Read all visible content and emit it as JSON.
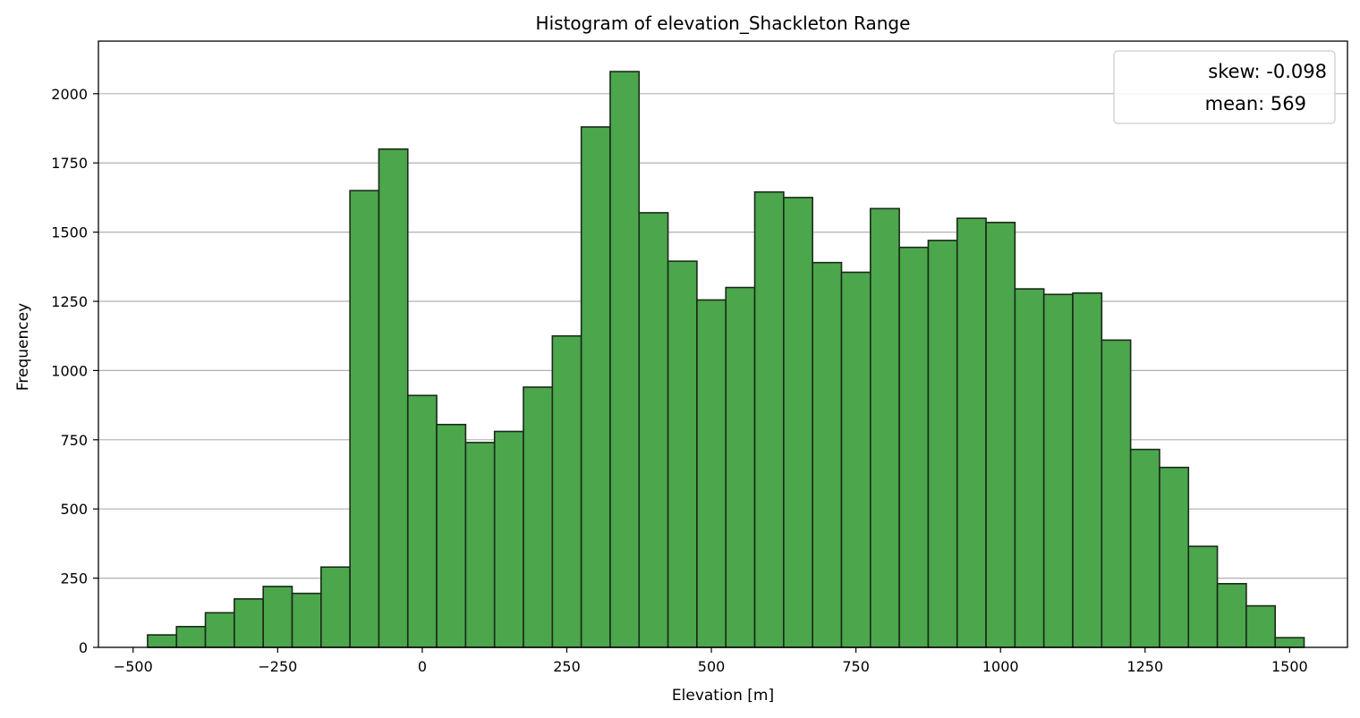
{
  "chart_data": {
    "type": "bar",
    "title": "Histogram of elevation_Shackleton Range",
    "xlabel": "Elevation [m]",
    "ylabel": "Frequencey",
    "xlim": [
      -560,
      1600
    ],
    "ylim": [
      0,
      2190
    ],
    "xticks": [
      -500,
      -250,
      0,
      250,
      500,
      750,
      1000,
      1250,
      1500
    ],
    "xtick_labels": [
      "−500",
      "−250",
      "0",
      "250",
      "500",
      "750",
      "1000",
      "1250",
      "1500"
    ],
    "yticks": [
      0,
      250,
      500,
      750,
      1000,
      1250,
      1500,
      1750,
      2000
    ],
    "ytick_labels": [
      "0",
      "250",
      "500",
      "750",
      "1000",
      "1250",
      "1500",
      "1750",
      "2000"
    ],
    "grid": "horizontal",
    "bar_color": "#4ca64c",
    "edge_color": "#1a2a1a",
    "bin_edges": [
      -475,
      -425,
      -375,
      -325,
      -275,
      -225,
      -175,
      -125,
      -75,
      -25,
      25,
      75,
      125,
      175,
      225,
      275,
      325,
      375,
      425,
      475,
      525,
      575,
      625,
      675,
      725,
      775,
      825,
      875,
      925,
      975,
      1025,
      1075,
      1125,
      1175,
      1225,
      1275,
      1325,
      1375,
      1425,
      1475
    ],
    "values": [
      45,
      75,
      125,
      175,
      220,
      195,
      290,
      1650,
      1800,
      910,
      805,
      740,
      780,
      940,
      1125,
      1880,
      2080,
      1570,
      1395,
      1255,
      1300,
      1645,
      1625,
      1390,
      1355,
      1585,
      1445,
      1470,
      1550,
      1535,
      1295,
      1275,
      1280,
      1110,
      715,
      650,
      365,
      230,
      150,
      35
    ],
    "legend": {
      "position": "top-right",
      "entries": [
        "skew: -0.098",
        "mean: 569"
      ]
    }
  }
}
